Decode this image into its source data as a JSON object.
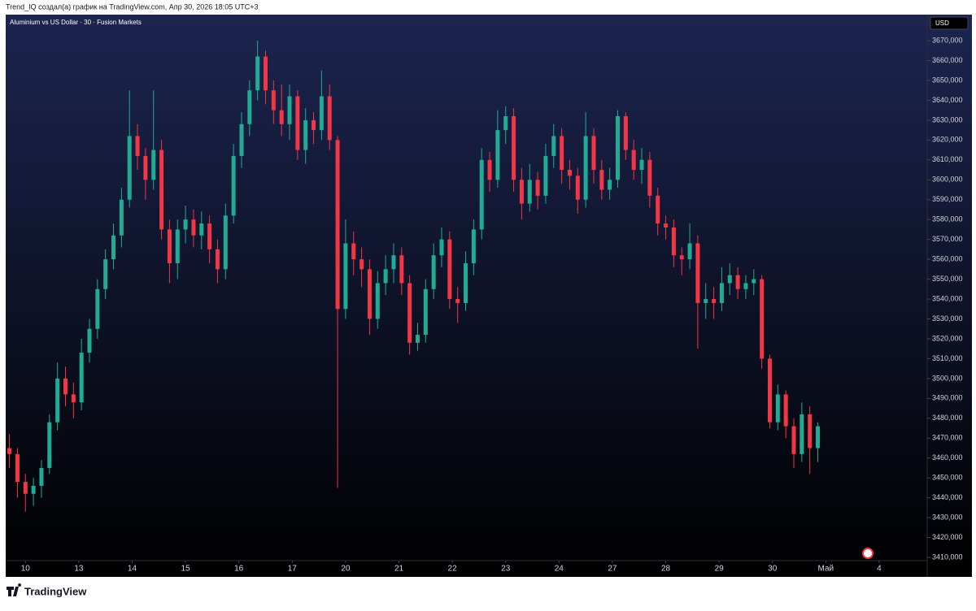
{
  "header": "Trend_IQ создал(а) график на TradingView.com, Апр 30, 2026 18:05 UTC+3",
  "footer": "TradingView",
  "chart_data": {
    "type": "candlestick",
    "title": "Aluminium vs US Dollar · 30 · Fusion Markets",
    "currency": "USD",
    "up_color": "#22ab94",
    "down_color": "#f23645",
    "xlim": [
      -0.37,
      16.9
    ],
    "ylim": [
      3400.2,
      3683.1
    ],
    "xticks": [
      {
        "value": 0,
        "label": "10"
      },
      {
        "value": 1,
        "label": "13"
      },
      {
        "value": 2,
        "label": "14"
      },
      {
        "value": 3,
        "label": "15"
      },
      {
        "value": 4,
        "label": "16"
      },
      {
        "value": 5,
        "label": "17"
      },
      {
        "value": 6,
        "label": "20"
      },
      {
        "value": 7,
        "label": "21"
      },
      {
        "value": 8,
        "label": "22"
      },
      {
        "value": 9,
        "label": "23"
      },
      {
        "value": 10,
        "label": "24"
      },
      {
        "value": 11,
        "label": "27"
      },
      {
        "value": 12,
        "label": "28"
      },
      {
        "value": 13,
        "label": "29"
      },
      {
        "value": 14,
        "label": "30"
      },
      {
        "value": 15,
        "label": "Май"
      },
      {
        "value": 16,
        "label": "4"
      }
    ],
    "yticks": [
      {
        "value": 3410,
        "label": "3410,000"
      },
      {
        "value": 3420,
        "label": "3420,000"
      },
      {
        "value": 3430,
        "label": "3430,000"
      },
      {
        "value": 3440,
        "label": "3440,000"
      },
      {
        "value": 3450,
        "label": "3450,000"
      },
      {
        "value": 3460,
        "label": "3460,000"
      },
      {
        "value": 3470,
        "label": "3470,000"
      },
      {
        "value": 3480,
        "label": "3480,000"
      },
      {
        "value": 3490,
        "label": "3490,000"
      },
      {
        "value": 3500,
        "label": "3500,000"
      },
      {
        "value": 3510,
        "label": "3510,000"
      },
      {
        "value": 3520,
        "label": "3520,000"
      },
      {
        "value": 3530,
        "label": "3530,000"
      },
      {
        "value": 3540,
        "label": "3540,000"
      },
      {
        "value": 3550,
        "label": "3550,000"
      },
      {
        "value": 3560,
        "label": "3560,000"
      },
      {
        "value": 3570,
        "label": "3570,000"
      },
      {
        "value": 3580,
        "label": "3580,000"
      },
      {
        "value": 3590,
        "label": "3590,000"
      },
      {
        "value": 3600,
        "label": "3600,000"
      },
      {
        "value": 3610,
        "label": "3610,000"
      },
      {
        "value": 3620,
        "label": "3620,000"
      },
      {
        "value": 3630,
        "label": "3630,000"
      },
      {
        "value": 3640,
        "label": "3640,000"
      },
      {
        "value": 3650,
        "label": "3650,000"
      },
      {
        "value": 3660,
        "label": "3660,000"
      },
      {
        "value": 3670,
        "label": "3670,000"
      }
    ],
    "x": [
      -0.3,
      -0.15,
      0,
      0.15,
      0.3,
      0.45,
      0.6,
      0.75,
      0.9,
      1.05,
      1.2,
      1.35,
      1.5,
      1.65,
      1.8,
      1.95,
      2.1,
      2.25,
      2.4,
      2.55,
      2.7,
      2.85,
      3,
      3.15,
      3.3,
      3.45,
      3.6,
      3.75,
      3.9,
      4.05,
      4.2,
      4.35,
      4.5,
      4.65,
      4.8,
      4.95,
      5.1,
      5.25,
      5.4,
      5.55,
      5.7,
      5.85,
      6,
      6.15,
      6.3,
      6.45,
      6.6,
      6.75,
      6.9,
      7.05,
      7.2,
      7.35,
      7.5,
      7.65,
      7.8,
      7.95,
      8.1,
      8.25,
      8.4,
      8.55,
      8.7,
      8.85,
      9,
      9.15,
      9.3,
      9.45,
      9.6,
      9.75,
      9.9,
      10.05,
      10.2,
      10.35,
      10.5,
      10.65,
      10.8,
      10.95,
      11.1,
      11.25,
      11.4,
      11.55,
      11.7,
      11.85,
      12,
      12.15,
      12.3,
      12.45,
      12.6,
      12.75,
      12.9,
      13.05,
      13.2,
      13.35,
      13.5,
      13.65,
      13.8,
      13.95,
      14.1,
      14.25,
      14.4,
      14.55,
      14.7,
      14.85
    ],
    "open": [
      3465,
      3462,
      3448,
      3442,
      3446,
      3455,
      3478,
      3500,
      3492,
      3488,
      3513,
      3525,
      3545,
      3560,
      3572,
      3590,
      3622,
      3612,
      3600,
      3615,
      3575,
      3558,
      3575,
      3580,
      3572,
      3578,
      3565,
      3555,
      3582,
      3612,
      3628,
      3645,
      3662,
      3645,
      3635,
      3628,
      3642,
      3615,
      3630,
      3625,
      3642,
      3620,
      3535,
      3568,
      3560,
      3555,
      3530,
      3548,
      3555,
      3562,
      3548,
      3518,
      3522,
      3545,
      3562,
      3570,
      3540,
      3538,
      3558,
      3575,
      3610,
      3600,
      3625,
      3632,
      3600,
      3588,
      3600,
      3592,
      3612,
      3622,
      3605,
      3602,
      3590,
      3622,
      3605,
      3595,
      3600,
      3632,
      3615,
      3605,
      3610,
      3592,
      3578,
      3576,
      3562,
      3560,
      3568,
      3538,
      3540,
      3538,
      3548,
      3552,
      3545,
      3548,
      3550,
      3510,
      3478,
      3492,
      3476,
      3462,
      3482,
      3465
    ],
    "high": [
      3472,
      3465,
      3452,
      3450,
      3459,
      3482,
      3508,
      3506,
      3498,
      3520,
      3530,
      3550,
      3565,
      3578,
      3596,
      3645,
      3628,
      3616,
      3645,
      3620,
      3580,
      3580,
      3587,
      3585,
      3584,
      3582,
      3570,
      3588,
      3618,
      3634,
      3650,
      3670,
      3665,
      3650,
      3648,
      3648,
      3645,
      3636,
      3634,
      3655,
      3648,
      3622,
      3580,
      3574,
      3566,
      3560,
      3554,
      3562,
      3568,
      3566,
      3552,
      3528,
      3550,
      3568,
      3576,
      3574,
      3546,
      3564,
      3580,
      3616,
      3614,
      3635,
      3637,
      3636,
      3606,
      3608,
      3604,
      3618,
      3628,
      3626,
      3610,
      3606,
      3634,
      3626,
      3610,
      3606,
      3635,
      3634,
      3620,
      3616,
      3614,
      3596,
      3582,
      3580,
      3566,
      3578,
      3572,
      3548,
      3546,
      3556,
      3558,
      3556,
      3552,
      3555,
      3552,
      3512,
      3497,
      3494,
      3480,
      3488,
      3486,
      3478
    ],
    "low": [
      3455,
      3440,
      3433,
      3436,
      3440,
      3452,
      3474,
      3486,
      3480,
      3484,
      3508,
      3520,
      3540,
      3555,
      3566,
      3586,
      3605,
      3590,
      3595,
      3570,
      3548,
      3550,
      3568,
      3566,
      3565,
      3558,
      3548,
      3550,
      3578,
      3606,
      3622,
      3640,
      3638,
      3628,
      3622,
      3620,
      3610,
      3608,
      3618,
      3620,
      3615,
      3445,
      3530,
      3552,
      3546,
      3522,
      3525,
      3542,
      3548,
      3542,
      3512,
      3514,
      3518,
      3540,
      3556,
      3535,
      3528,
      3534,
      3552,
      3570,
      3594,
      3596,
      3618,
      3594,
      3580,
      3584,
      3585,
      3588,
      3606,
      3598,
      3595,
      3583,
      3586,
      3598,
      3590,
      3590,
      3596,
      3610,
      3600,
      3598,
      3586,
      3572,
      3570,
      3556,
      3552,
      3555,
      3515,
      3530,
      3530,
      3534,
      3542,
      3540,
      3540,
      3542,
      3505,
      3475,
      3474,
      3470,
      3455,
      3458,
      3452,
      3458
    ],
    "close": [
      3462,
      3448,
      3442,
      3446,
      3455,
      3478,
      3500,
      3492,
      3488,
      3513,
      3525,
      3545,
      3560,
      3572,
      3590,
      3622,
      3612,
      3600,
      3615,
      3575,
      3558,
      3575,
      3580,
      3572,
      3578,
      3565,
      3555,
      3582,
      3612,
      3628,
      3645,
      3662,
      3645,
      3635,
      3628,
      3642,
      3615,
      3630,
      3625,
      3642,
      3620,
      3535,
      3568,
      3560,
      3555,
      3530,
      3548,
      3555,
      3562,
      3548,
      3518,
      3522,
      3545,
      3562,
      3570,
      3540,
      3538,
      3558,
      3575,
      3610,
      3600,
      3625,
      3632,
      3600,
      3588,
      3600,
      3592,
      3612,
      3622,
      3605,
      3602,
      3590,
      3622,
      3605,
      3595,
      3600,
      3632,
      3615,
      3605,
      3610,
      3592,
      3578,
      3576,
      3562,
      3560,
      3568,
      3538,
      3540,
      3538,
      3548,
      3552,
      3545,
      3548,
      3550,
      3510,
      3478,
      3492,
      3476,
      3462,
      3482,
      3465,
      3476
    ]
  }
}
